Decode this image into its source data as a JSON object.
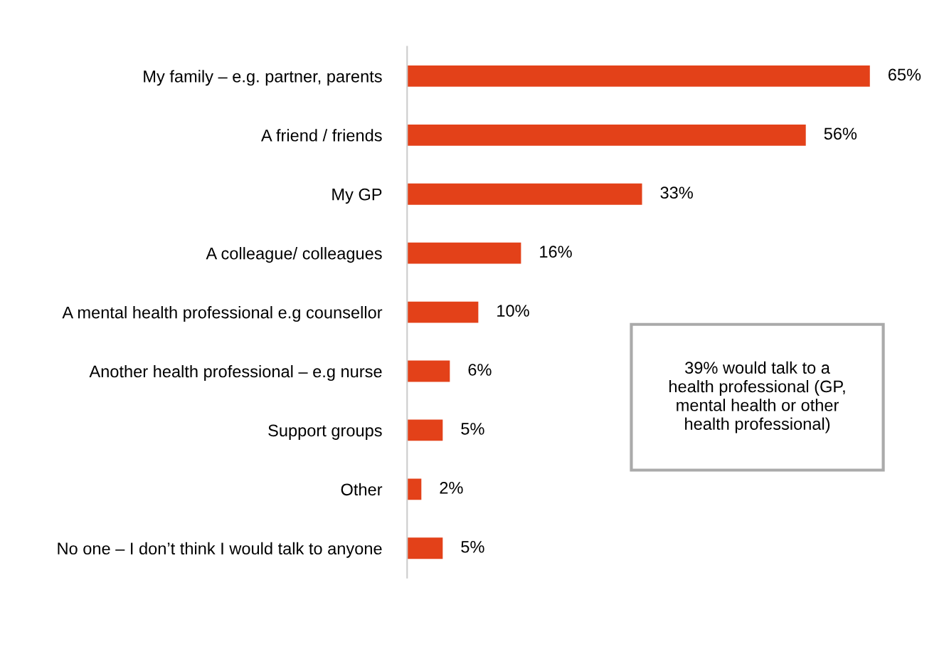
{
  "chart_data": {
    "type": "bar",
    "orientation": "horizontal",
    "categories": [
      "My family – e.g. partner, parents",
      "A friend / friends",
      "My GP",
      "A colleague/ colleagues",
      "A mental health professional e.g counsellor",
      "Another health professional – e.g nurse",
      "Support groups",
      "Other",
      "No one – I don’t think I would talk to anyone"
    ],
    "values": [
      65,
      56,
      33,
      16,
      10,
      6,
      5,
      2,
      5
    ],
    "value_labels": [
      "65%",
      "56%",
      "33%",
      "16%",
      "10%",
      "6%",
      "5%",
      "2%",
      "5%"
    ],
    "color": "#e34119",
    "tick_labels": "y",
    "grid": false,
    "legend": false,
    "annotations": [
      "39% would talk to a\nhealth professional (GP,\nmental health or other\nhealth professional)"
    ]
  }
}
